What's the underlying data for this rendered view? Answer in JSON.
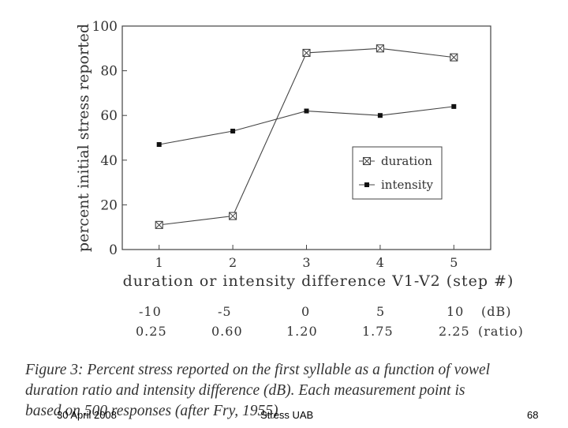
{
  "chart_data": {
    "type": "line",
    "x": [
      1,
      2,
      3,
      4,
      5
    ],
    "categories": [
      "1",
      "2",
      "3",
      "4",
      "5"
    ],
    "series": [
      {
        "name": "duration",
        "values": [
          11,
          15,
          88,
          90,
          86
        ],
        "marker": "boxed-x"
      },
      {
        "name": "intensity",
        "values": [
          47,
          53,
          62,
          60,
          64
        ],
        "marker": "filled-square"
      }
    ],
    "xlabel": "duration or intensity difference V1-V2 (step #)",
    "ylabel": "percent initial stress reported",
    "ylim": [
      0,
      100
    ],
    "yticks": [
      0,
      20,
      40,
      60,
      80,
      100
    ],
    "xlim": [
      0.5,
      5.5
    ],
    "legend_position": "right"
  },
  "dB_row": {
    "values": [
      "-10",
      "-5",
      "0",
      "5",
      "10"
    ],
    "unit": "(dB)"
  },
  "ratio_row": {
    "values": [
      "0.25",
      "0.60",
      "1.20",
      "1.75",
      "2.25"
    ],
    "unit": "(ratio)"
  },
  "caption": {
    "line1": "Figure 3: Percent stress reported on the first syllable as a function of vowel",
    "line2": "duration ratio and intensity difference (dB). Each measurement point is",
    "line3": "based on 500 responses (after Fry, 1955)"
  },
  "footer": {
    "date": "30 April 2008",
    "title": "Stress UAB",
    "page": "68"
  },
  "colors": {
    "line": "#444444",
    "text": "#333333"
  }
}
